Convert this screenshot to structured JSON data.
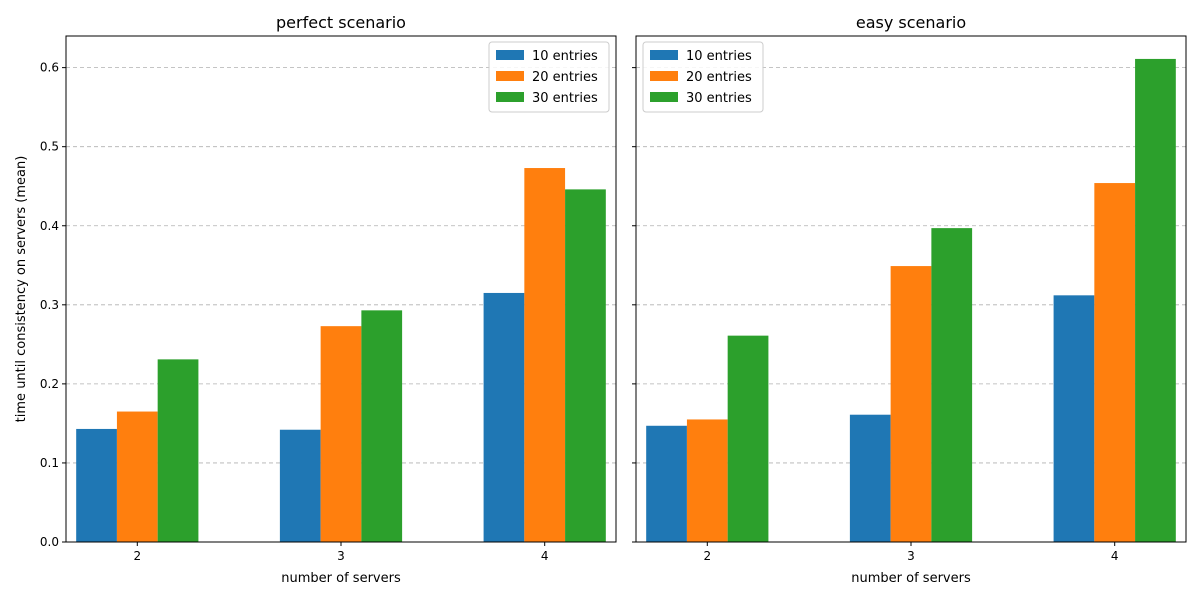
{
  "chart_data": [
    {
      "type": "bar",
      "title": "perfect scenario",
      "xlabel": "number of servers",
      "ylabel": "time until consistency on servers (mean)",
      "categories": [
        "2",
        "3",
        "4"
      ],
      "series": [
        {
          "name": "10 entries",
          "values": [
            0.143,
            0.142,
            0.315
          ]
        },
        {
          "name": "20 entries",
          "values": [
            0.165,
            0.273,
            0.473
          ]
        },
        {
          "name": "30 entries",
          "values": [
            0.231,
            0.293,
            0.446
          ]
        }
      ],
      "ylim": [
        0,
        0.64
      ],
      "yticks": [
        "0.0",
        "0.1",
        "0.2",
        "0.3",
        "0.4",
        "0.5",
        "0.6"
      ],
      "grid": true,
      "legend": "top-right"
    },
    {
      "type": "bar",
      "title": "easy scenario",
      "xlabel": "number of servers",
      "ylabel": "",
      "categories": [
        "2",
        "3",
        "4"
      ],
      "series": [
        {
          "name": "10 entries",
          "values": [
            0.147,
            0.161,
            0.312
          ]
        },
        {
          "name": "20 entries",
          "values": [
            0.155,
            0.349,
            0.454
          ]
        },
        {
          "name": "30 entries",
          "values": [
            0.261,
            0.397,
            0.611
          ]
        }
      ],
      "ylim": [
        0,
        0.64
      ],
      "yticks": [
        "0.0",
        "0.1",
        "0.2",
        "0.3",
        "0.4",
        "0.5",
        "0.6"
      ],
      "grid": true,
      "legend": "top-left"
    }
  ],
  "colors": [
    "#1f77b4",
    "#ff7f0e",
    "#2ca02c"
  ]
}
